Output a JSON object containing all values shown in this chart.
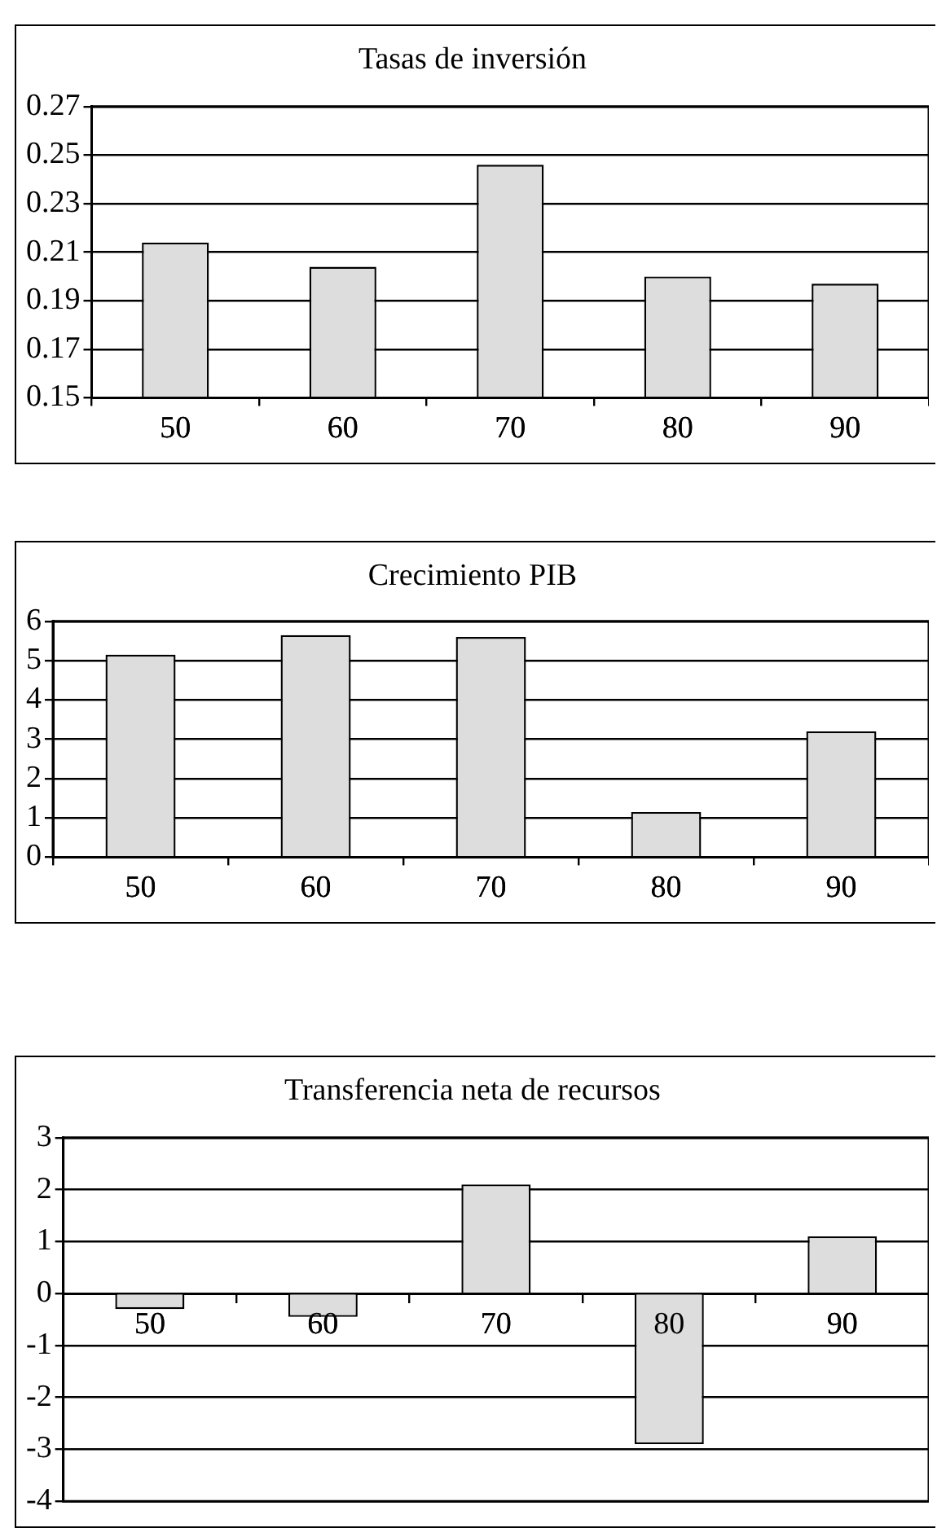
{
  "chart_data": [
    {
      "type": "bar",
      "title": "Tasas de inversión",
      "categories": [
        "50",
        "60",
        "70",
        "80",
        "90"
      ],
      "values": [
        0.214,
        0.204,
        0.246,
        0.2,
        0.197
      ],
      "color": "#dddddd",
      "ylim": [
        0.15,
        0.27
      ],
      "yticks": [
        0.15,
        0.17,
        0.19,
        0.21,
        0.23,
        0.25,
        0.27
      ],
      "grid": "y",
      "legend": false
    },
    {
      "type": "bar",
      "title": "Crecimiento PIB",
      "categories": [
        "50",
        "60",
        "70",
        "80",
        "90"
      ],
      "values": [
        5.15,
        5.65,
        5.6,
        1.15,
        3.2
      ],
      "color": "#dddddd",
      "ylim": [
        0,
        6
      ],
      "yticks": [
        0,
        1,
        2,
        3,
        4,
        5,
        6
      ],
      "grid": "y",
      "legend": false
    },
    {
      "type": "bar",
      "title": "Transferencia neta de recursos",
      "categories": [
        "50",
        "60",
        "70",
        "80",
        "90"
      ],
      "values": [
        -0.3,
        -0.45,
        2.1,
        -2.9,
        1.1
      ],
      "color": "#dddddd",
      "ylim": [
        -4,
        3
      ],
      "yticks": [
        -4,
        -3,
        -2,
        -1,
        0,
        1,
        2,
        3
      ],
      "grid": "y",
      "legend": false
    }
  ]
}
